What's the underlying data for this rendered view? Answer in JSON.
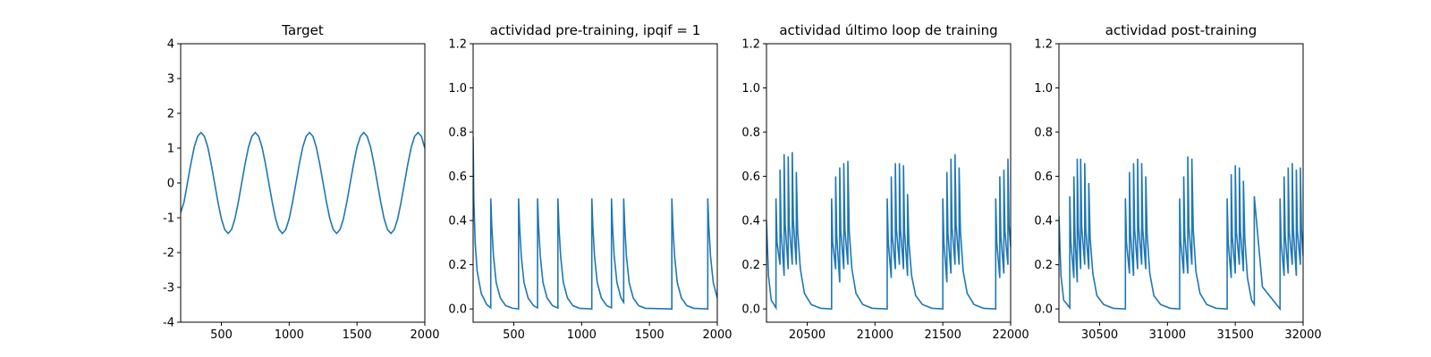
{
  "chart_data": [
    {
      "type": "line",
      "title": "Target",
      "color": "#1f77b4",
      "xlim": [
        200,
        2000
      ],
      "xticks": [
        500,
        1000,
        1500,
        2000
      ],
      "ylim": [
        -4,
        4
      ],
      "yticks": [
        -4,
        -3,
        -2,
        -1,
        0,
        1,
        2,
        3,
        4
      ],
      "x": [
        200,
        225,
        250,
        275,
        300,
        325,
        350,
        375,
        400,
        425,
        450,
        475,
        500,
        525,
        550,
        575,
        600,
        625,
        650,
        675,
        700,
        725,
        750,
        775,
        800,
        825,
        850,
        875,
        900,
        925,
        950,
        975,
        1000,
        1025,
        1050,
        1075,
        1100,
        1125,
        1150,
        1175,
        1200,
        1225,
        1250,
        1275,
        1300,
        1325,
        1350,
        1375,
        1400,
        1425,
        1450,
        1475,
        1500,
        1525,
        1550,
        1575,
        1600,
        1625,
        1650,
        1675,
        1700,
        1725,
        1750,
        1775,
        1800,
        1825,
        1850,
        1875,
        1900,
        1925,
        1950,
        1975,
        2000
      ],
      "values": [
        -0.85,
        -0.55,
        0,
        0.55,
        1.03,
        1.34,
        1.45,
        1.34,
        1.03,
        0.55,
        0,
        -0.55,
        -1.03,
        -1.34,
        -1.45,
        -1.34,
        -1.03,
        -0.55,
        0,
        0.55,
        1.03,
        1.34,
        1.45,
        1.34,
        1.03,
        0.55,
        0,
        -0.55,
        -1.03,
        -1.34,
        -1.45,
        -1.34,
        -1.03,
        -0.55,
        0,
        0.55,
        1.03,
        1.34,
        1.45,
        1.34,
        1.03,
        0.55,
        0,
        -0.55,
        -1.03,
        -1.34,
        -1.45,
        -1.34,
        -1.03,
        -0.55,
        0,
        0.55,
        1.03,
        1.34,
        1.45,
        1.34,
        1.03,
        0.55,
        0,
        -0.55,
        -1.03,
        -1.34,
        -1.45,
        -1.34,
        -1.03,
        -0.55,
        0,
        0.55,
        1.03,
        1.34,
        1.45,
        1.34,
        1.0
      ]
    },
    {
      "type": "line",
      "title": "actividad pre-training, ipqif = 1",
      "color": "#1f77b4",
      "xlim": [
        200,
        2000
      ],
      "xticks": [
        500,
        1000,
        1500,
        2000
      ],
      "ylim": [
        -0.06,
        1.2
      ],
      "yticks": [
        {
          "value": 0,
          "label": "0.0"
        },
        0.2,
        0.4,
        0.6,
        0.8,
        {
          "value": 1,
          "label": "1.0"
        },
        1.2
      ],
      "x": [
        200,
        205,
        215,
        230,
        260,
        300,
        330,
        330,
        338,
        350,
        370,
        400,
        440,
        490,
        535,
        535,
        543,
        555,
        575,
        605,
        645,
        675,
        675,
        683,
        695,
        715,
        745,
        785,
        825,
        825,
        833,
        845,
        865,
        895,
        935,
        985,
        1075,
        1075,
        1083,
        1095,
        1115,
        1145,
        1185,
        1220,
        1220,
        1228,
        1240,
        1260,
        1290,
        1310,
        1310,
        1318,
        1330,
        1350,
        1380,
        1420,
        1470,
        1665,
        1665,
        1673,
        1685,
        1705,
        1735,
        1775,
        1825,
        1930,
        1930,
        1938,
        1950,
        1970,
        2000
      ],
      "values": [
        0.78,
        0.5,
        0.3,
        0.17,
        0.07,
        0.02,
        0.005,
        0.5,
        0.37,
        0.24,
        0.12,
        0.05,
        0.015,
        0.003,
        0,
        0.5,
        0.37,
        0.24,
        0.12,
        0.05,
        0.015,
        0.005,
        0.5,
        0.37,
        0.24,
        0.12,
        0.05,
        0.015,
        0.004,
        0.5,
        0.37,
        0.24,
        0.12,
        0.05,
        0.015,
        0.003,
        0,
        0.5,
        0.37,
        0.24,
        0.12,
        0.05,
        0.015,
        0.005,
        0.5,
        0.37,
        0.24,
        0.12,
        0.05,
        0.03,
        0.5,
        0.37,
        0.24,
        0.12,
        0.05,
        0.015,
        0.003,
        0,
        0.5,
        0.37,
        0.24,
        0.12,
        0.05,
        0.015,
        0.003,
        0,
        0.5,
        0.37,
        0.24,
        0.12,
        0.05
      ]
    },
    {
      "type": "line",
      "title": "actividad último loop de training",
      "color": "#1f77b4",
      "xlim": [
        20200,
        22000
      ],
      "xticks": [
        20500,
        21000,
        21500,
        22000
      ],
      "ylim": [
        -0.06,
        1.2
      ],
      "yticks": [
        {
          "value": 0,
          "label": "0.0"
        },
        0.2,
        0.4,
        0.6,
        0.8,
        {
          "value": 1,
          "label": "1.0"
        },
        1.2
      ],
      "x": [
        20200,
        20215,
        20235,
        20270,
        20270,
        20278,
        20300,
        20300,
        20308,
        20330,
        20330,
        20338,
        20360,
        20360,
        20368,
        20390,
        20390,
        20398,
        20420,
        20420,
        20430,
        20450,
        20480,
        20530,
        20600,
        20680,
        20680,
        20688,
        20710,
        20710,
        20718,
        20740,
        20740,
        20748,
        20770,
        20770,
        20778,
        20800,
        20800,
        20810,
        20830,
        20860,
        20910,
        20980,
        21090,
        21090,
        21098,
        21120,
        21120,
        21128,
        21150,
        21150,
        21158,
        21180,
        21180,
        21188,
        21210,
        21210,
        21218,
        21240,
        21240,
        21250,
        21270,
        21300,
        21350,
        21420,
        21500,
        21500,
        21508,
        21530,
        21530,
        21538,
        21560,
        21560,
        21568,
        21590,
        21590,
        21598,
        21620,
        21620,
        21630,
        21650,
        21680,
        21730,
        21800,
        21890,
        21890,
        21898,
        21920,
        21920,
        21928,
        21950,
        21950,
        21958,
        21980,
        21980,
        21988,
        22000
      ],
      "values": [
        0.4,
        0.15,
        0.04,
        0.005,
        0.5,
        0.3,
        0.2,
        0.63,
        0.35,
        0.15,
        0.7,
        0.38,
        0.18,
        0.69,
        0.38,
        0.2,
        0.71,
        0.4,
        0.2,
        0.62,
        0.35,
        0.18,
        0.07,
        0.02,
        0.003,
        0,
        0.5,
        0.3,
        0.18,
        0.6,
        0.33,
        0.12,
        0.64,
        0.35,
        0.18,
        0.66,
        0.36,
        0.2,
        0.67,
        0.35,
        0.18,
        0.07,
        0.02,
        0.003,
        0,
        0.5,
        0.3,
        0.14,
        0.6,
        0.33,
        0.18,
        0.66,
        0.36,
        0.2,
        0.66,
        0.36,
        0.18,
        0.65,
        0.35,
        0.15,
        0.52,
        0.3,
        0.15,
        0.06,
        0.02,
        0.003,
        0,
        0.5,
        0.3,
        0.12,
        0.62,
        0.34,
        0.16,
        0.68,
        0.37,
        0.2,
        0.7,
        0.38,
        0.2,
        0.64,
        0.35,
        0.17,
        0.07,
        0.02,
        0.003,
        0,
        0.5,
        0.3,
        0.14,
        0.6,
        0.33,
        0.16,
        0.63,
        0.35,
        0.2,
        0.68,
        0.38,
        0.28
      ]
    },
    {
      "type": "line",
      "title": "actividad post-training",
      "color": "#1f77b4",
      "xlim": [
        30200,
        32000
      ],
      "xticks": [
        30500,
        31000,
        31500,
        32000
      ],
      "ylim": [
        -0.06,
        1.2
      ],
      "yticks": [
        {
          "value": 0,
          "label": "0.0"
        },
        0.2,
        0.4,
        0.6,
        0.8,
        {
          "value": 1,
          "label": "1.0"
        },
        1.2
      ],
      "x": [
        30200,
        30215,
        30235,
        30280,
        30280,
        30288,
        30310,
        30310,
        30318,
        30335,
        30335,
        30343,
        30360,
        30360,
        30368,
        30390,
        30390,
        30398,
        30420,
        30420,
        30430,
        30450,
        30480,
        30530,
        30600,
        30690,
        30690,
        30698,
        30720,
        30720,
        30728,
        30750,
        30750,
        30758,
        30780,
        30780,
        30788,
        30810,
        30810,
        30818,
        30840,
        30840,
        30850,
        30870,
        30900,
        30950,
        31020,
        31090,
        31090,
        31098,
        31120,
        31120,
        31128,
        31150,
        31150,
        31158,
        31180,
        31180,
        31190,
        31210,
        31240,
        31290,
        31360,
        31440,
        31440,
        31448,
        31470,
        31470,
        31478,
        31500,
        31500,
        31508,
        31530,
        31530,
        31538,
        31560,
        31560,
        31570,
        31590,
        31620,
        31640,
        31640,
        31700,
        31830,
        31830,
        31838,
        31860,
        31860,
        31868,
        31890,
        31890,
        31898,
        31920,
        31920,
        31928,
        31950,
        31950,
        31958,
        31980,
        31980,
        31988,
        32000
      ],
      "values": [
        0.42,
        0.15,
        0.04,
        0.005,
        0.51,
        0.3,
        0.14,
        0.6,
        0.33,
        0.12,
        0.68,
        0.37,
        0.18,
        0.68,
        0.37,
        0.2,
        0.66,
        0.36,
        0.18,
        0.57,
        0.32,
        0.16,
        0.06,
        0.02,
        0.003,
        0,
        0.5,
        0.3,
        0.16,
        0.62,
        0.34,
        0.15,
        0.66,
        0.36,
        0.18,
        0.68,
        0.37,
        0.2,
        0.66,
        0.36,
        0.18,
        0.6,
        0.34,
        0.16,
        0.06,
        0.02,
        0.003,
        0,
        0.5,
        0.3,
        0.16,
        0.6,
        0.33,
        0.16,
        0.69,
        0.37,
        0.2,
        0.68,
        0.36,
        0.17,
        0.07,
        0.02,
        0.003,
        0,
        0.5,
        0.3,
        0.14,
        0.61,
        0.33,
        0.16,
        0.65,
        0.35,
        0.2,
        0.64,
        0.35,
        0.17,
        0.58,
        0.32,
        0.14,
        0.04,
        0.02,
        0.51,
        0.1,
        0,
        0.5,
        0.3,
        0.15,
        0.6,
        0.33,
        0.16,
        0.64,
        0.35,
        0.2,
        0.66,
        0.36,
        0.15,
        0.63,
        0.35,
        0.2,
        0.64,
        0.36,
        0.24
      ]
    }
  ]
}
